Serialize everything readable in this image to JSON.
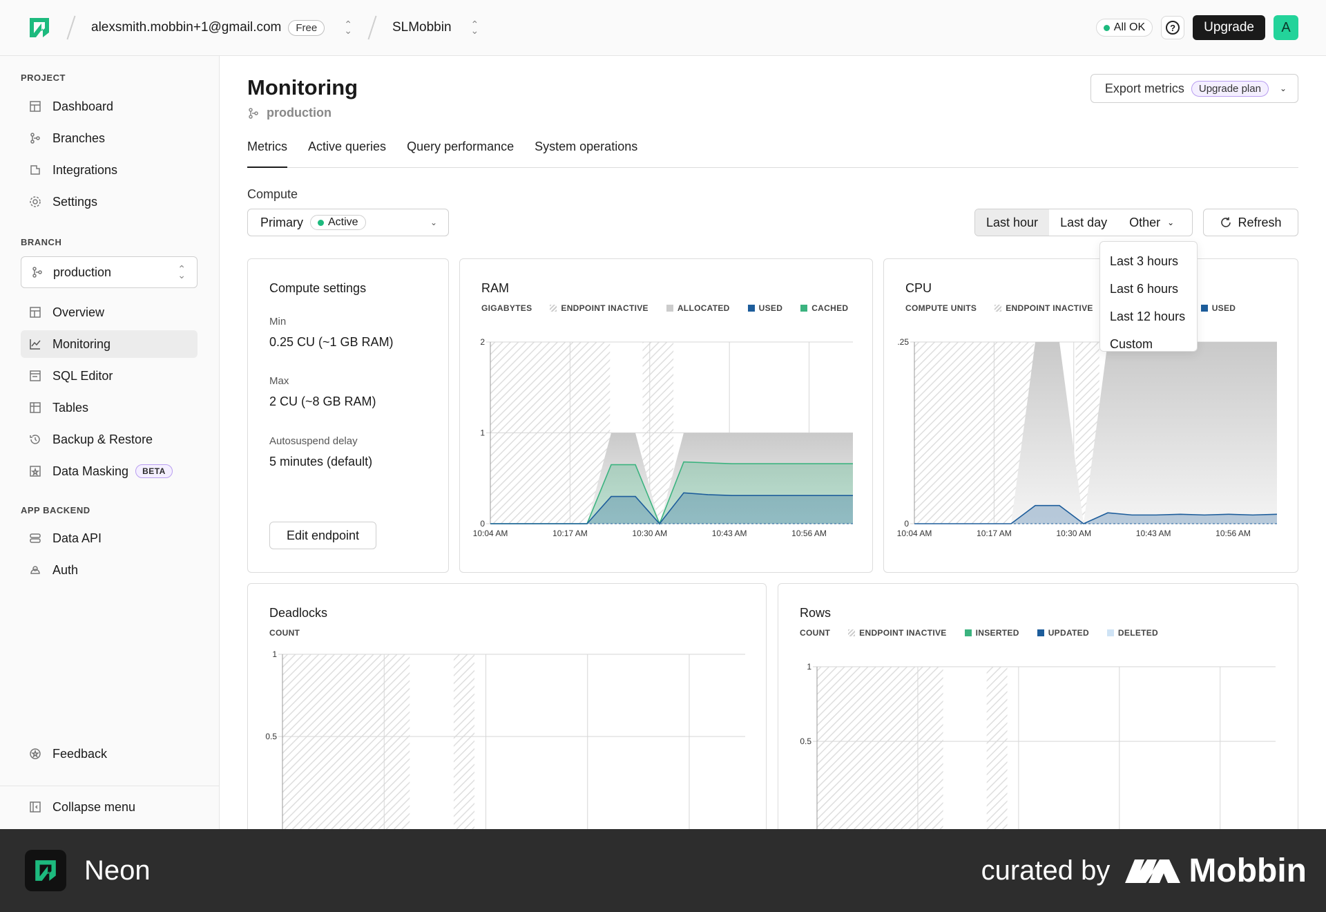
{
  "topbar": {
    "account": "alexsmith.mobbin+1@gmail.com",
    "plan_badge": "Free",
    "project": "SLMobbin",
    "status": "All OK",
    "upgrade_label": "Upgrade",
    "avatar_letter": "A"
  },
  "sidebar": {
    "project_section": "PROJECT",
    "project_items": [
      {
        "label": "Dashboard",
        "icon": "dashboard-icon"
      },
      {
        "label": "Branches",
        "icon": "branches-icon"
      },
      {
        "label": "Integrations",
        "icon": "integrations-icon"
      },
      {
        "label": "Settings",
        "icon": "settings-icon"
      }
    ],
    "branch_section": "BRANCH",
    "branch_value": "production",
    "branch_items": [
      {
        "label": "Overview",
        "icon": "overview-icon"
      },
      {
        "label": "Monitoring",
        "icon": "monitoring-icon"
      },
      {
        "label": "SQL Editor",
        "icon": "sql-editor-icon"
      },
      {
        "label": "Tables",
        "icon": "tables-icon"
      },
      {
        "label": "Backup & Restore",
        "icon": "backup-icon"
      },
      {
        "label": "Data Masking",
        "icon": "data-masking-icon"
      }
    ],
    "beta_badge": "BETA",
    "app_section": "APP BACKEND",
    "app_items": [
      {
        "label": "Data API",
        "icon": "data-api-icon"
      },
      {
        "label": "Auth",
        "icon": "auth-icon"
      }
    ],
    "feedback": "Feedback",
    "collapse": "Collapse menu"
  },
  "main": {
    "title": "Monitoring",
    "branch": "production",
    "export_label": "Export metrics",
    "upgrade_plan": "Upgrade plan",
    "tabs": [
      "Metrics",
      "Active queries",
      "Query performance",
      "System operations"
    ],
    "compute_label": "Compute",
    "compute_value": "Primary",
    "compute_status": "Active",
    "ranges": [
      "Last hour",
      "Last day",
      "Other"
    ],
    "refresh_label": "Refresh",
    "dropdown": [
      "Last 3 hours",
      "Last 6 hours",
      "Last 12 hours",
      "Custom"
    ]
  },
  "compute_settings": {
    "title": "Compute settings",
    "min_label": "Min",
    "min_value": "0.25 CU (~1 GB RAM)",
    "max_label": "Max",
    "max_value": "2 CU (~8 GB RAM)",
    "autosuspend_label": "Autosuspend delay",
    "autosuspend_value": "5 minutes (default)",
    "edit_label": "Edit endpoint"
  },
  "chart_data": [
    {
      "type": "area",
      "title": "RAM",
      "ylabel": "GIGABYTES",
      "legend": [
        "ENDPOINT INACTIVE",
        "ALLOCATED",
        "USED",
        "CACHED"
      ],
      "x_ticks": [
        "10:04 AM",
        "10:17 AM",
        "10:30 AM",
        "10:43 AM",
        "10:56 AM"
      ],
      "y_ticks": [
        "0",
        "1",
        "2"
      ],
      "ylim": [
        0,
        2
      ],
      "series": [
        {
          "name": "ALLOCATED",
          "values": [
            0,
            0,
            0,
            0,
            0,
            1,
            1,
            0,
            1,
            1,
            1,
            1,
            1,
            1,
            1,
            1
          ]
        },
        {
          "name": "CACHED",
          "values": [
            0,
            0,
            0,
            0,
            0,
            0.65,
            0.65,
            0,
            0.68,
            0.67,
            0.66,
            0.66,
            0.66,
            0.66,
            0.66,
            0.66
          ]
        },
        {
          "name": "USED",
          "values": [
            0,
            0,
            0,
            0,
            0,
            0.3,
            0.3,
            0,
            0.34,
            0.32,
            0.31,
            0.31,
            0.31,
            0.31,
            0.31,
            0.31
          ]
        }
      ]
    },
    {
      "type": "area",
      "title": "CPU",
      "ylabel": "COMPUTE UNITS",
      "legend": [
        "ENDPOINT INACTIVE",
        "USED"
      ],
      "x_ticks": [
        "10:04 AM",
        "10:17 AM",
        "10:30 AM",
        "10:43 AM",
        "10:56 AM"
      ],
      "y_ticks": [
        "0",
        ".25"
      ],
      "ylim": [
        0,
        0.25
      ],
      "series": [
        {
          "name": "ALLOCATED",
          "values": [
            0,
            0,
            0,
            0,
            0,
            0.25,
            0.25,
            0,
            0.25,
            0.25,
            0.25,
            0.25,
            0.25,
            0.25,
            0.25,
            0.25
          ]
        },
        {
          "name": "USED",
          "values": [
            0,
            0,
            0,
            0,
            0,
            0.025,
            0.025,
            0,
            0.015,
            0.012,
            0.012,
            0.013,
            0.012,
            0.013,
            0.012,
            0.013
          ]
        }
      ]
    },
    {
      "type": "line",
      "title": "Deadlocks",
      "ylabel": "COUNT",
      "y_ticks": [
        "0.5",
        "1"
      ],
      "ylim": [
        0,
        1
      ]
    },
    {
      "type": "line",
      "title": "Rows",
      "ylabel": "COUNT",
      "legend": [
        "ENDPOINT INACTIVE",
        "INSERTED",
        "UPDATED",
        "DELETED"
      ],
      "y_ticks": [
        "0.5",
        "1"
      ],
      "ylim": [
        0,
        1
      ]
    }
  ],
  "footer": {
    "brand": "Neon",
    "curated": "curated by",
    "mobbin": "Mobbin"
  },
  "colors": {
    "accent": "#1dba7e",
    "used": "#1d5d9b",
    "cached": "#3bb37f",
    "beta": "#b99ef0"
  }
}
